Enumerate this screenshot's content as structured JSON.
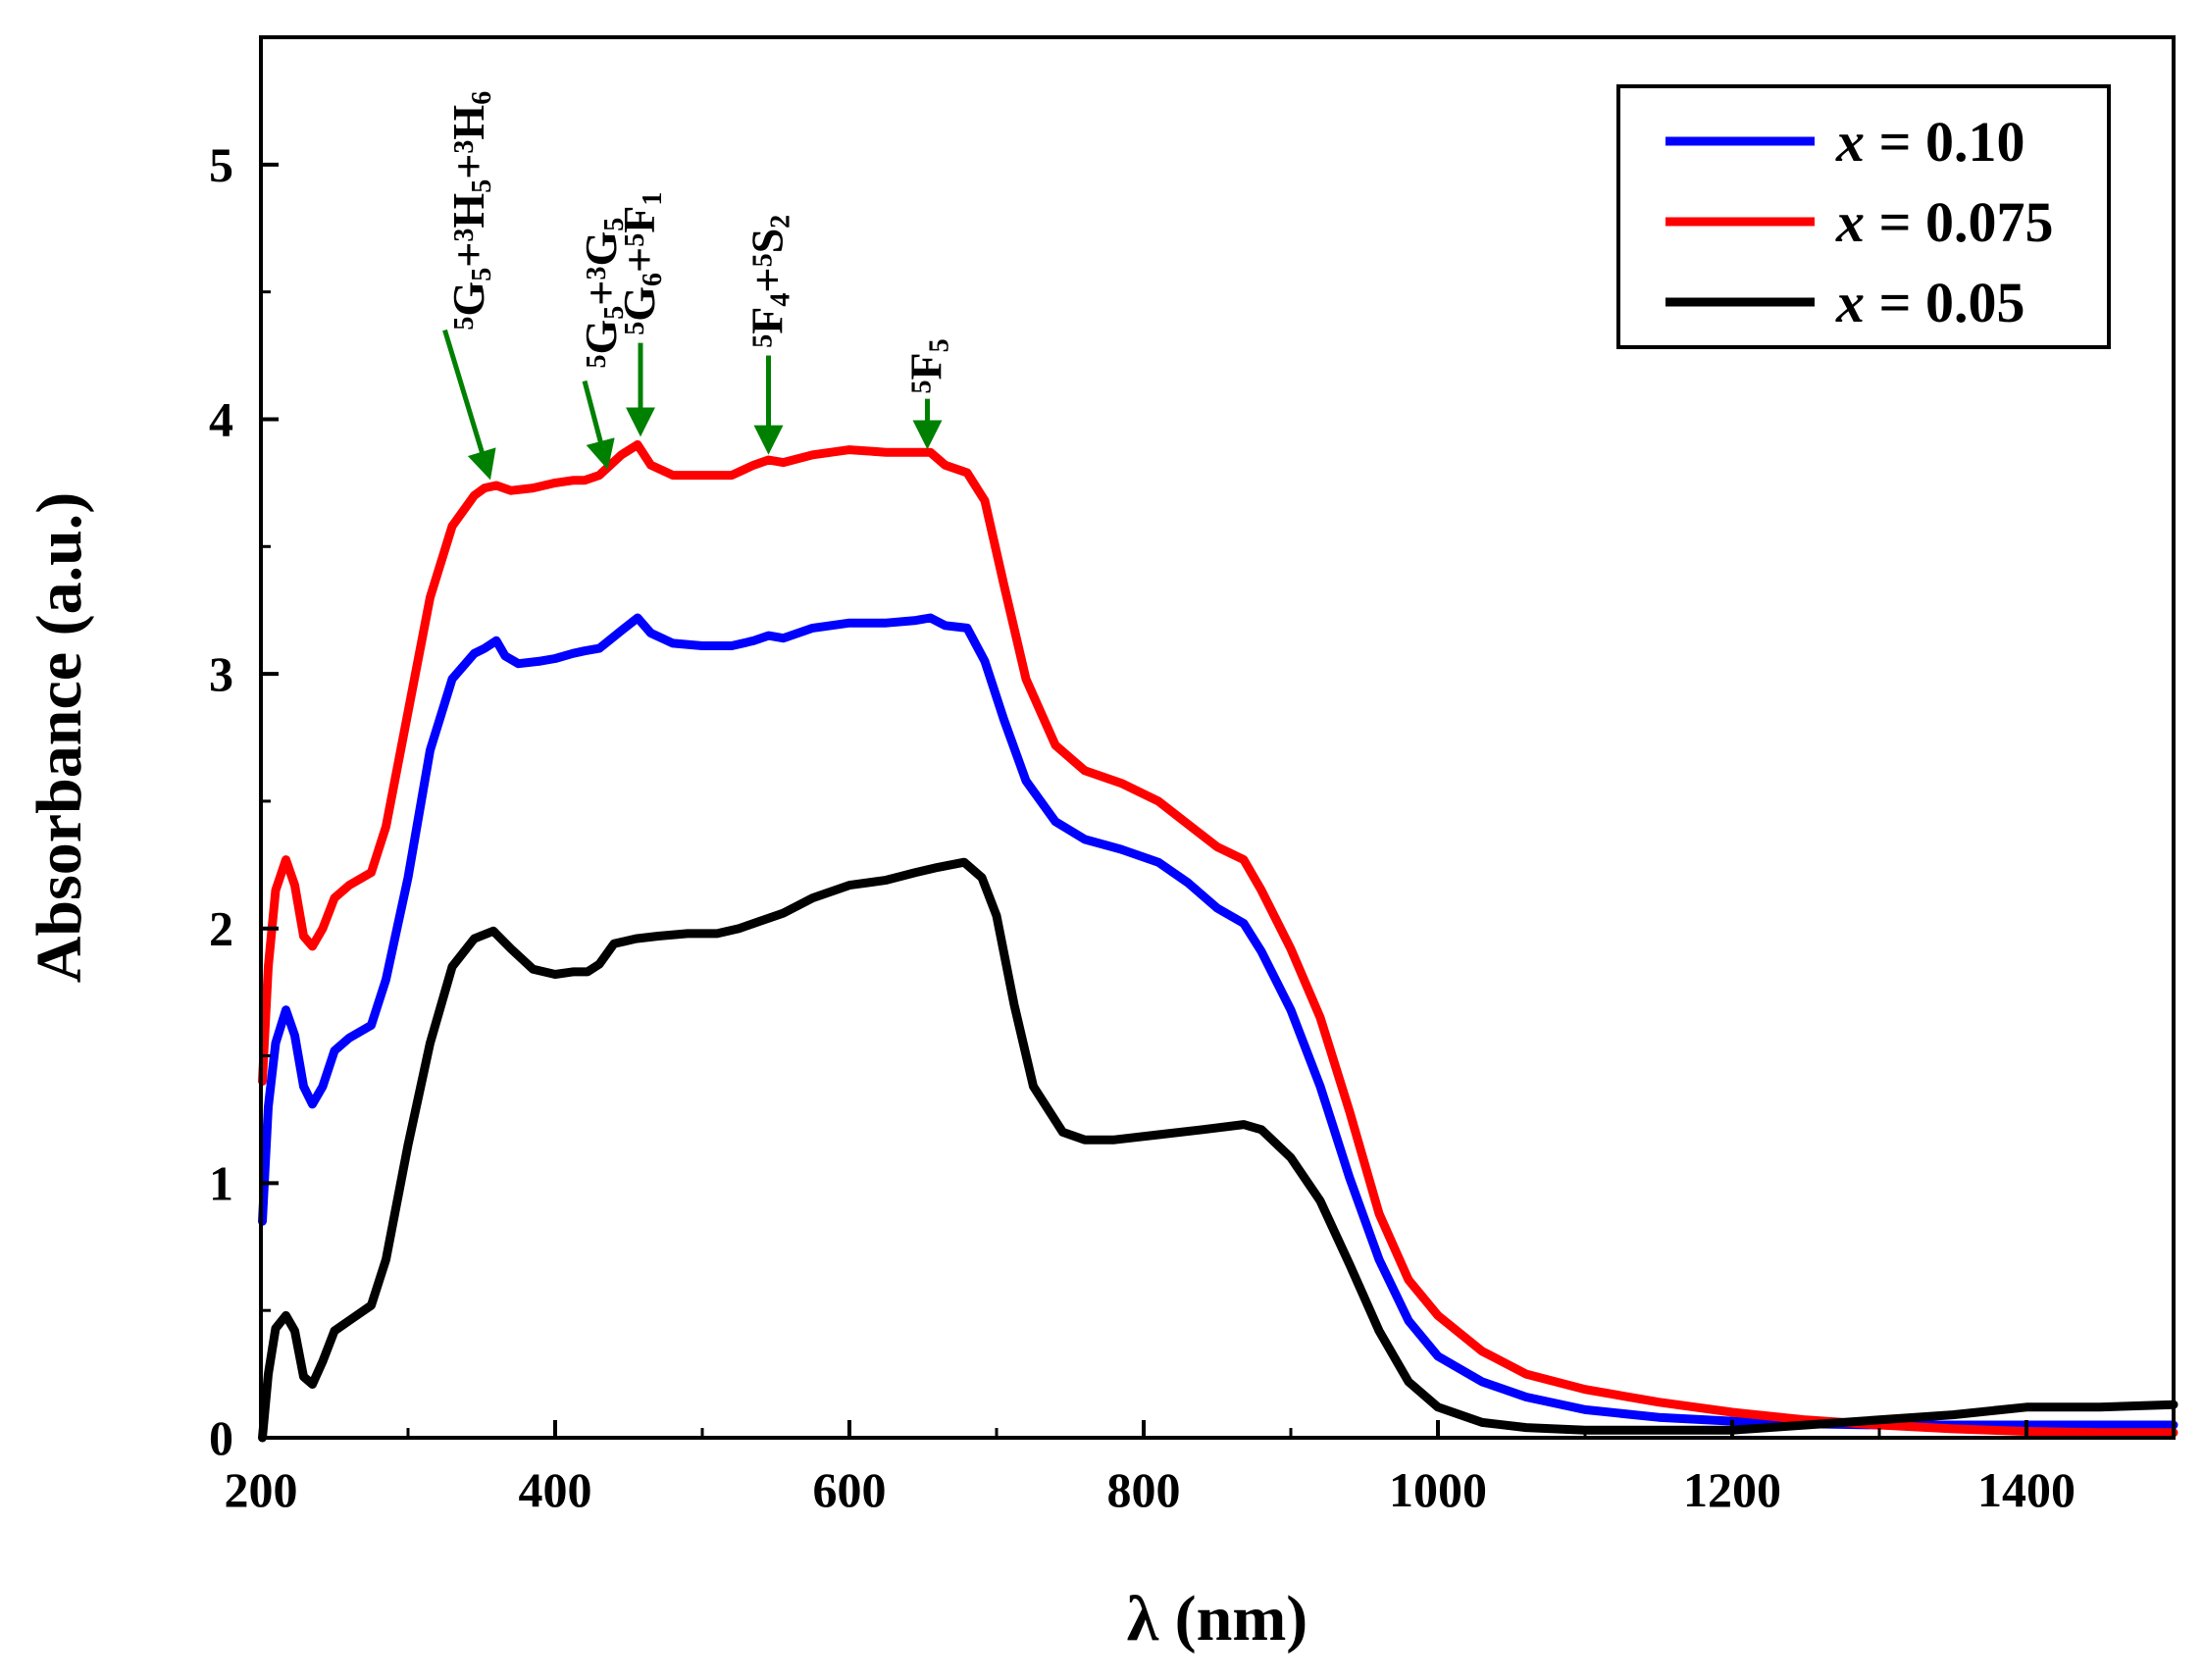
{
  "chart_data": {
    "type": "line",
    "title": "",
    "xlabel": "λ  (nm)",
    "ylabel": "Absorbance  (a.u.)",
    "xlim": [
      200,
      1500
    ],
    "ylim": [
      0,
      5.5
    ],
    "x_ticks": [
      200,
      400,
      600,
      800,
      1000,
      1200,
      1400
    ],
    "y_ticks": [
      0,
      1,
      2,
      3,
      4,
      5
    ],
    "grid": false,
    "legend_position": "top-right",
    "series": [
      {
        "name": "x = 0.10",
        "legend_var": "x",
        "legend_value": "= 0.10",
        "color": "#0000ff",
        "points": [
          [
            201,
            0.85
          ],
          [
            205,
            1.3
          ],
          [
            210,
            1.55
          ],
          [
            217,
            1.68
          ],
          [
            223,
            1.58
          ],
          [
            229,
            1.38
          ],
          [
            235,
            1.31
          ],
          [
            242,
            1.38
          ],
          [
            250,
            1.52
          ],
          [
            260,
            1.57
          ],
          [
            275,
            1.62
          ],
          [
            285,
            1.8
          ],
          [
            300,
            2.2
          ],
          [
            315,
            2.7
          ],
          [
            330,
            2.98
          ],
          [
            345,
            3.08
          ],
          [
            352,
            3.1
          ],
          [
            360,
            3.13
          ],
          [
            366,
            3.07
          ],
          [
            375,
            3.04
          ],
          [
            390,
            3.05
          ],
          [
            400,
            3.06
          ],
          [
            412,
            3.08
          ],
          [
            420,
            3.09
          ],
          [
            430,
            3.1
          ],
          [
            445,
            3.17
          ],
          [
            456,
            3.22
          ],
          [
            465,
            3.16
          ],
          [
            480,
            3.12
          ],
          [
            500,
            3.11
          ],
          [
            520,
            3.11
          ],
          [
            535,
            3.13
          ],
          [
            545,
            3.15
          ],
          [
            555,
            3.14
          ],
          [
            575,
            3.18
          ],
          [
            600,
            3.2
          ],
          [
            625,
            3.2
          ],
          [
            645,
            3.21
          ],
          [
            655,
            3.22
          ],
          [
            665,
            3.19
          ],
          [
            680,
            3.18
          ],
          [
            692,
            3.05
          ],
          [
            705,
            2.82
          ],
          [
            720,
            2.58
          ],
          [
            740,
            2.42
          ],
          [
            760,
            2.35
          ],
          [
            785,
            2.31
          ],
          [
            810,
            2.26
          ],
          [
            830,
            2.18
          ],
          [
            850,
            2.08
          ],
          [
            868,
            2.02
          ],
          [
            880,
            1.91
          ],
          [
            900,
            1.68
          ],
          [
            920,
            1.38
          ],
          [
            940,
            1.02
          ],
          [
            960,
            0.7
          ],
          [
            980,
            0.46
          ],
          [
            1000,
            0.32
          ],
          [
            1030,
            0.22
          ],
          [
            1060,
            0.16
          ],
          [
            1100,
            0.11
          ],
          [
            1150,
            0.08
          ],
          [
            1200,
            0.065
          ],
          [
            1250,
            0.055
          ],
          [
            1300,
            0.05
          ],
          [
            1350,
            0.05
          ],
          [
            1400,
            0.05
          ],
          [
            1450,
            0.05
          ],
          [
            1500,
            0.05
          ]
        ]
      },
      {
        "name": "x = 0.075",
        "legend_var": "x",
        "legend_value": "= 0.075",
        "color": "#ff0000",
        "points": [
          [
            201,
            1.4
          ],
          [
            205,
            1.85
          ],
          [
            210,
            2.15
          ],
          [
            217,
            2.27
          ],
          [
            223,
            2.17
          ],
          [
            229,
            1.97
          ],
          [
            235,
            1.93
          ],
          [
            242,
            2.0
          ],
          [
            250,
            2.12
          ],
          [
            260,
            2.17
          ],
          [
            275,
            2.22
          ],
          [
            285,
            2.4
          ],
          [
            300,
            2.85
          ],
          [
            315,
            3.3
          ],
          [
            330,
            3.58
          ],
          [
            345,
            3.7
          ],
          [
            352,
            3.73
          ],
          [
            360,
            3.74
          ],
          [
            370,
            3.72
          ],
          [
            385,
            3.73
          ],
          [
            400,
            3.75
          ],
          [
            412,
            3.76
          ],
          [
            420,
            3.76
          ],
          [
            430,
            3.78
          ],
          [
            445,
            3.86
          ],
          [
            456,
            3.9
          ],
          [
            465,
            3.82
          ],
          [
            480,
            3.78
          ],
          [
            500,
            3.78
          ],
          [
            520,
            3.78
          ],
          [
            535,
            3.82
          ],
          [
            545,
            3.84
          ],
          [
            555,
            3.83
          ],
          [
            575,
            3.86
          ],
          [
            600,
            3.88
          ],
          [
            625,
            3.87
          ],
          [
            645,
            3.87
          ],
          [
            655,
            3.87
          ],
          [
            665,
            3.82
          ],
          [
            680,
            3.79
          ],
          [
            692,
            3.68
          ],
          [
            705,
            3.35
          ],
          [
            720,
            2.98
          ],
          [
            740,
            2.72
          ],
          [
            760,
            2.62
          ],
          [
            785,
            2.57
          ],
          [
            810,
            2.5
          ],
          [
            830,
            2.41
          ],
          [
            850,
            2.32
          ],
          [
            868,
            2.27
          ],
          [
            880,
            2.15
          ],
          [
            900,
            1.92
          ],
          [
            920,
            1.65
          ],
          [
            940,
            1.28
          ],
          [
            960,
            0.88
          ],
          [
            980,
            0.62
          ],
          [
            1000,
            0.48
          ],
          [
            1030,
            0.34
          ],
          [
            1060,
            0.25
          ],
          [
            1100,
            0.19
          ],
          [
            1150,
            0.14
          ],
          [
            1200,
            0.1
          ],
          [
            1250,
            0.07
          ],
          [
            1300,
            0.05
          ],
          [
            1350,
            0.035
          ],
          [
            1400,
            0.025
          ],
          [
            1450,
            0.02
          ],
          [
            1500,
            0.02
          ]
        ]
      },
      {
        "name": "x = 0.05",
        "legend_var": "x",
        "legend_value": "= 0.05",
        "color": "#000000",
        "points": [
          [
            201,
            0.0
          ],
          [
            205,
            0.25
          ],
          [
            210,
            0.43
          ],
          [
            217,
            0.48
          ],
          [
            223,
            0.42
          ],
          [
            229,
            0.24
          ],
          [
            235,
            0.21
          ],
          [
            242,
            0.3
          ],
          [
            250,
            0.42
          ],
          [
            260,
            0.46
          ],
          [
            275,
            0.52
          ],
          [
            285,
            0.7
          ],
          [
            300,
            1.15
          ],
          [
            315,
            1.55
          ],
          [
            330,
            1.85
          ],
          [
            345,
            1.96
          ],
          [
            358,
            1.99
          ],
          [
            370,
            1.92
          ],
          [
            385,
            1.84
          ],
          [
            400,
            1.82
          ],
          [
            412,
            1.83
          ],
          [
            422,
            1.83
          ],
          [
            430,
            1.86
          ],
          [
            440,
            1.94
          ],
          [
            455,
            1.96
          ],
          [
            470,
            1.97
          ],
          [
            490,
            1.98
          ],
          [
            510,
            1.98
          ],
          [
            525,
            2.0
          ],
          [
            540,
            2.03
          ],
          [
            555,
            2.06
          ],
          [
            575,
            2.12
          ],
          [
            600,
            2.17
          ],
          [
            625,
            2.19
          ],
          [
            645,
            2.22
          ],
          [
            660,
            2.24
          ],
          [
            678,
            2.26
          ],
          [
            690,
            2.2
          ],
          [
            700,
            2.05
          ],
          [
            712,
            1.7
          ],
          [
            725,
            1.38
          ],
          [
            745,
            1.2
          ],
          [
            760,
            1.17
          ],
          [
            780,
            1.17
          ],
          [
            810,
            1.19
          ],
          [
            840,
            1.21
          ],
          [
            868,
            1.23
          ],
          [
            880,
            1.21
          ],
          [
            900,
            1.1
          ],
          [
            920,
            0.93
          ],
          [
            940,
            0.68
          ],
          [
            960,
            0.42
          ],
          [
            980,
            0.22
          ],
          [
            1000,
            0.12
          ],
          [
            1030,
            0.06
          ],
          [
            1060,
            0.04
          ],
          [
            1100,
            0.03
          ],
          [
            1150,
            0.03
          ],
          [
            1200,
            0.03
          ],
          [
            1250,
            0.05
          ],
          [
            1300,
            0.07
          ],
          [
            1350,
            0.09
          ],
          [
            1400,
            0.12
          ],
          [
            1450,
            0.12
          ],
          [
            1500,
            0.13
          ]
        ]
      }
    ],
    "annotations": [
      {
        "id": "g5-h5-h6",
        "label_parts": [
          {
            "s": "5",
            "t": "sup"
          },
          {
            "s": "G",
            "t": "n"
          },
          {
            "s": "5",
            "t": "sub"
          },
          {
            "s": "+",
            "t": "n"
          },
          {
            "s": "3",
            "t": "sup"
          },
          {
            "s": "H",
            "t": "n"
          },
          {
            "s": "5",
            "t": "sub"
          },
          {
            "s": "+",
            "t": "n"
          },
          {
            "s": "3",
            "t": "sup"
          },
          {
            "s": "H",
            "t": "n"
          },
          {
            "s": "6",
            "t": "sub"
          }
        ],
        "arrow_from": [
          325,
          4.35
        ],
        "arrow_to": [
          355,
          3.78
        ],
        "label_at": [
          342,
          4.35
        ]
      },
      {
        "id": "g5-g5",
        "label_parts": [
          {
            "s": "5",
            "t": "sup"
          },
          {
            "s": "G",
            "t": "n"
          },
          {
            "s": "5",
            "t": "sub"
          },
          {
            "s": "+",
            "t": "n"
          },
          {
            "s": "3",
            "t": "sup"
          },
          {
            "s": "G",
            "t": "n"
          },
          {
            "s": "5",
            "t": "sub"
          }
        ],
        "arrow_from": [
          420,
          4.15
        ],
        "arrow_to": [
          435,
          3.82
        ],
        "label_at": [
          432,
          4.2
        ]
      },
      {
        "id": "g6-f1",
        "label_parts": [
          {
            "s": "5",
            "t": "sup"
          },
          {
            "s": "G",
            "t": "n"
          },
          {
            "s": "6",
            "t": "sub"
          },
          {
            "s": "+",
            "t": "n"
          },
          {
            "s": "5",
            "t": "sup"
          },
          {
            "s": "F",
            "t": "n"
          },
          {
            "s": "1",
            "t": "sub"
          }
        ],
        "arrow_from": [
          458,
          4.3
        ],
        "arrow_to": [
          458,
          3.95
        ],
        "label_at": [
          458,
          4.33
        ]
      },
      {
        "id": "f4-s2",
        "label_parts": [
          {
            "s": "5",
            "t": "sup"
          },
          {
            "s": "F",
            "t": "n"
          },
          {
            "s": "4",
            "t": "sub"
          },
          {
            "s": "+",
            "t": "n"
          },
          {
            "s": "5",
            "t": "sup"
          },
          {
            "s": "S",
            "t": "n"
          },
          {
            "s": "2",
            "t": "sub"
          }
        ],
        "arrow_from": [
          545,
          4.25
        ],
        "arrow_to": [
          545,
          3.88
        ],
        "label_at": [
          545,
          4.28
        ]
      },
      {
        "id": "f5",
        "label_parts": [
          {
            "s": "5",
            "t": "sup"
          },
          {
            "s": "F",
            "t": "n"
          },
          {
            "s": "5",
            "t": "sub"
          }
        ],
        "arrow_from": [
          653,
          4.08
        ],
        "arrow_to": [
          653,
          3.9
        ],
        "label_at": [
          653,
          4.1
        ]
      }
    ],
    "annotation_color": "#008000"
  }
}
